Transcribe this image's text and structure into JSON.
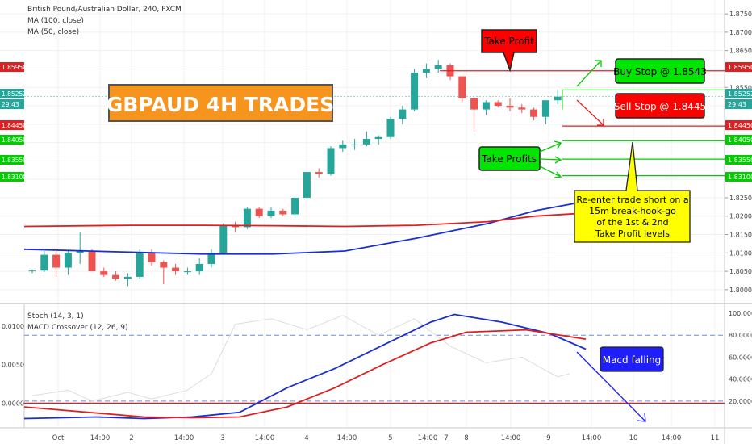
{
  "header": {
    "symbol": "British Pound/Australian Dollar, 240, FXCM",
    "ma100": "MA (100, close)",
    "ma50": "MA (50, close)"
  },
  "lower_header": {
    "stoch": "Stoch (14, 3, 1)",
    "macd": "MACD Crossover (12, 26, 9)"
  },
  "annotations": {
    "title": "GBPAUD 4H TRADES",
    "take_profit": "Take Profit",
    "buy_stop": "Buy Stop @ 1.8543",
    "sell_stop": "Sell Stop @ 1.8445",
    "take_profits": "Take Profits",
    "reenter": [
      "Re-enter trade short on a",
      "15m break-hook-go",
      "of the 1st & 2nd",
      "Take Profit levels"
    ],
    "macd_falling": "Macd falling"
  },
  "colors": {
    "up": "#26a69a",
    "down": "#ef5350",
    "ma_blue": "#1a2fd0",
    "ma_red": "#e02020",
    "label_green": "#00e600",
    "label_red": "#ff0000",
    "label_orange": "#f7941d",
    "label_yellow": "#ffff00",
    "label_blue": "#1e1eff"
  },
  "price_axis": {
    "ticks": [
      "1.87500",
      "1.87000",
      "1.86500",
      "1.86000",
      "1.85500",
      "1.85000",
      "1.84500",
      "1.84000",
      "1.83500",
      "1.83000",
      "1.82500",
      "1.82000",
      "1.81500",
      "1.81000",
      "1.80500",
      "1.80000"
    ],
    "badges": [
      {
        "text": "1.85950",
        "color": "#e02020"
      },
      {
        "text": "1.85252",
        "color": "#26a69a"
      },
      {
        "text": "29:43",
        "color": "#26a69a"
      },
      {
        "text": "1.84450",
        "color": "#e02020"
      },
      {
        "text": "1.84050",
        "color": "#00cc00"
      },
      {
        "text": "1.83550",
        "color": "#00cc00"
      },
      {
        "text": "1.83100",
        "color": "#00cc00"
      }
    ]
  },
  "lower_axis_right": [
    "100.0000",
    "80.0000",
    "60.0000",
    "40.0000",
    "20.0000"
  ],
  "lower_axis_left": [
    "0.0100",
    "0.0050",
    "0.0000"
  ],
  "time_axis": [
    "Oct",
    "14:00",
    "2",
    "14:00",
    "3",
    "14:00",
    "4",
    "14:00",
    "5",
    "14:00",
    "7",
    "8",
    "14:00",
    "9",
    "14:00",
    "10",
    "14:00",
    "11"
  ],
  "chart_data": [
    {
      "type": "candlestick",
      "title": "British Pound/Australian Dollar, 240, FXCM",
      "ylim": [
        1.798,
        1.877
      ],
      "candles": [
        [
          1.805,
          1.8055,
          1.8045,
          1.8052
        ],
        [
          1.8052,
          1.8105,
          1.8048,
          1.8095
        ],
        [
          1.8095,
          1.811,
          1.8035,
          1.806
        ],
        [
          1.806,
          1.8108,
          1.804,
          1.81
        ],
        [
          1.81,
          1.8155,
          1.807,
          1.8105
        ],
        [
          1.8105,
          1.811,
          1.805,
          1.805
        ],
        [
          1.805,
          1.806,
          1.8035,
          1.804
        ],
        [
          1.804,
          1.805,
          1.8025,
          1.803
        ],
        [
          1.803,
          1.8045,
          1.801,
          1.8035
        ],
        [
          1.8035,
          1.811,
          1.803,
          1.81
        ],
        [
          1.81,
          1.811,
          1.8065,
          1.8075
        ],
        [
          1.8075,
          1.808,
          1.8015,
          1.806
        ],
        [
          1.806,
          1.807,
          1.804,
          1.805
        ],
        [
          1.805,
          1.806,
          1.804,
          1.805
        ],
        [
          1.805,
          1.8085,
          1.804,
          1.807
        ],
        [
          1.807,
          1.811,
          1.806,
          1.81
        ],
        [
          1.81,
          1.818,
          1.81,
          1.8175
        ],
        [
          1.8175,
          1.8185,
          1.8155,
          1.817
        ],
        [
          1.817,
          1.8225,
          1.8165,
          1.822
        ],
        [
          1.822,
          1.8225,
          1.8195,
          1.82
        ],
        [
          1.82,
          1.8225,
          1.8195,
          1.8215
        ],
        [
          1.8215,
          1.822,
          1.82,
          1.8205
        ],
        [
          1.8205,
          1.8255,
          1.8195,
          1.825
        ],
        [
          1.825,
          1.832,
          1.8245,
          1.832
        ],
        [
          1.832,
          1.833,
          1.8305,
          1.8315
        ],
        [
          1.8315,
          1.839,
          1.831,
          1.8385
        ],
        [
          1.8385,
          1.8405,
          1.8375,
          1.8395
        ],
        [
          1.8395,
          1.841,
          1.838,
          1.8395
        ],
        [
          1.8395,
          1.843,
          1.839,
          1.841
        ],
        [
          1.841,
          1.842,
          1.8395,
          1.8415
        ],
        [
          1.8415,
          1.847,
          1.841,
          1.8465
        ],
        [
          1.8465,
          1.85,
          1.845,
          1.849
        ],
        [
          1.849,
          1.86,
          1.8485,
          1.859
        ],
        [
          1.859,
          1.8615,
          1.8575,
          1.86
        ],
        [
          1.86,
          1.8625,
          1.859,
          1.861
        ],
        [
          1.861,
          1.8615,
          1.857,
          1.858
        ],
        [
          1.858,
          1.858,
          1.851,
          1.852
        ],
        [
          1.852,
          1.8525,
          1.843,
          1.849
        ],
        [
          1.849,
          1.8515,
          1.8475,
          1.851
        ],
        [
          1.851,
          1.8515,
          1.8495,
          1.85
        ],
        [
          1.85,
          1.852,
          1.8485,
          1.8495
        ],
        [
          1.8495,
          1.8505,
          1.848,
          1.849
        ],
        [
          1.849,
          1.8495,
          1.846,
          1.847
        ],
        [
          1.847,
          1.851,
          1.845,
          1.8515
        ],
        [
          1.8515,
          1.8545,
          1.8505,
          1.8525
        ]
      ],
      "ma100": [
        [
          0,
          1.811
        ],
        [
          6,
          1.8102
        ],
        [
          12,
          1.8097
        ],
        [
          18,
          1.8097
        ],
        [
          24,
          1.8105
        ],
        [
          30,
          1.814
        ],
        [
          36,
          1.818
        ],
        [
          40,
          1.8215
        ],
        [
          45,
          1.8245
        ]
      ],
      "ma50": [
        [
          0,
          1.8172
        ],
        [
          6,
          1.8175
        ],
        [
          12,
          1.8175
        ],
        [
          18,
          1.8174
        ],
        [
          24,
          1.8172
        ],
        [
          30,
          1.8175
        ],
        [
          36,
          1.8185
        ],
        [
          40,
          1.82
        ],
        [
          45,
          1.821
        ]
      ],
      "levels": [
        {
          "name": "take-profit",
          "value": 1.8595,
          "color": "#e02020"
        },
        {
          "name": "sell-stop",
          "value": 1.8445,
          "color": "#e02020"
        },
        {
          "name": "buy-stop",
          "value": 1.8543,
          "color": "#00cc00"
        },
        {
          "name": "tp1",
          "value": 1.8405,
          "color": "#00cc00"
        },
        {
          "name": "tp2",
          "value": 1.8355,
          "color": "#00cc00"
        },
        {
          "name": "tp3",
          "value": 1.831,
          "color": "#00cc00"
        }
      ]
    },
    {
      "type": "line",
      "title": "MACD Crossover (12, 26, 9)",
      "ylim": [
        -0.003,
        0.0125
      ],
      "series": [
        {
          "name": "macd",
          "color": "#1a2fd0",
          "points": [
            [
              0,
              -0.002
            ],
            [
              4,
              -0.0018
            ],
            [
              8,
              -0.002
            ],
            [
              12,
              -0.0018
            ],
            [
              16,
              -0.0012
            ],
            [
              20,
              0.002
            ],
            [
              24,
              0.0045
            ],
            [
              28,
              0.0075
            ],
            [
              32,
              0.0105
            ],
            [
              34,
              0.0115
            ],
            [
              38,
              0.0105
            ],
            [
              42,
              0.009
            ],
            [
              45,
              0.007
            ]
          ]
        },
        {
          "name": "signal",
          "color": "#e02020",
          "points": [
            [
              0,
              -0.0005
            ],
            [
              8,
              -0.0018
            ],
            [
              12,
              -0.0019
            ],
            [
              16,
              -0.0018
            ],
            [
              20,
              -0.0005
            ],
            [
              24,
              0.002
            ],
            [
              28,
              0.005
            ],
            [
              32,
              0.0078
            ],
            [
              35,
              0.0092
            ],
            [
              40,
              0.0095
            ],
            [
              45,
              0.0083
            ]
          ]
        }
      ],
      "zero_line": 0.0,
      "overbought": 80,
      "oversold": 20
    }
  ]
}
